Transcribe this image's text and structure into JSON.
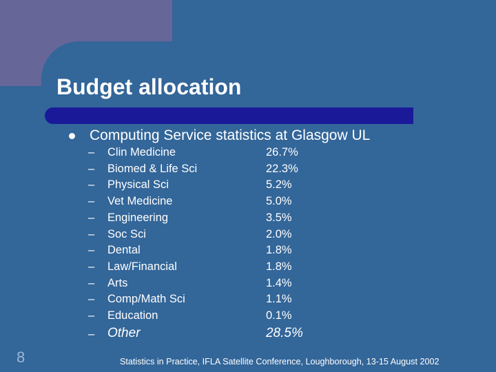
{
  "slide": {
    "title": "Budget allocation",
    "bullet": "Computing Service statistics at Glasgow UL",
    "dash": "–",
    "items": [
      {
        "label": "Clin Medicine",
        "value": "26.7%"
      },
      {
        "label": "Biomed & Life Sci",
        "value": "22.3%"
      },
      {
        "label": "Physical Sci",
        "value": "5.2%"
      },
      {
        "label": "Vet Medicine",
        "value": "5.0%"
      },
      {
        "label": "Engineering",
        "value": "3.5%"
      },
      {
        "label": "Soc Sci",
        "value": "2.0%"
      },
      {
        "label": "Dental",
        "value": "1.8%"
      },
      {
        "label": "Law/Financial",
        "value": "1.8%"
      },
      {
        "label": "Arts",
        "value": "1.4%"
      },
      {
        "label": "Comp/Math Sci",
        "value": "1.1%"
      },
      {
        "label": "Education",
        "value": "0.1%"
      },
      {
        "label": "Other",
        "value": "28.5%"
      }
    ],
    "page_number": "8",
    "footer": "Statistics in Practice, IFLA Satellite Conference, Loughborough, 13-15 August 2002"
  },
  "colors": {
    "background": "#336699",
    "corner_block": "#666699",
    "title_bar": "#1a1a99",
    "text": "#ffffff"
  }
}
